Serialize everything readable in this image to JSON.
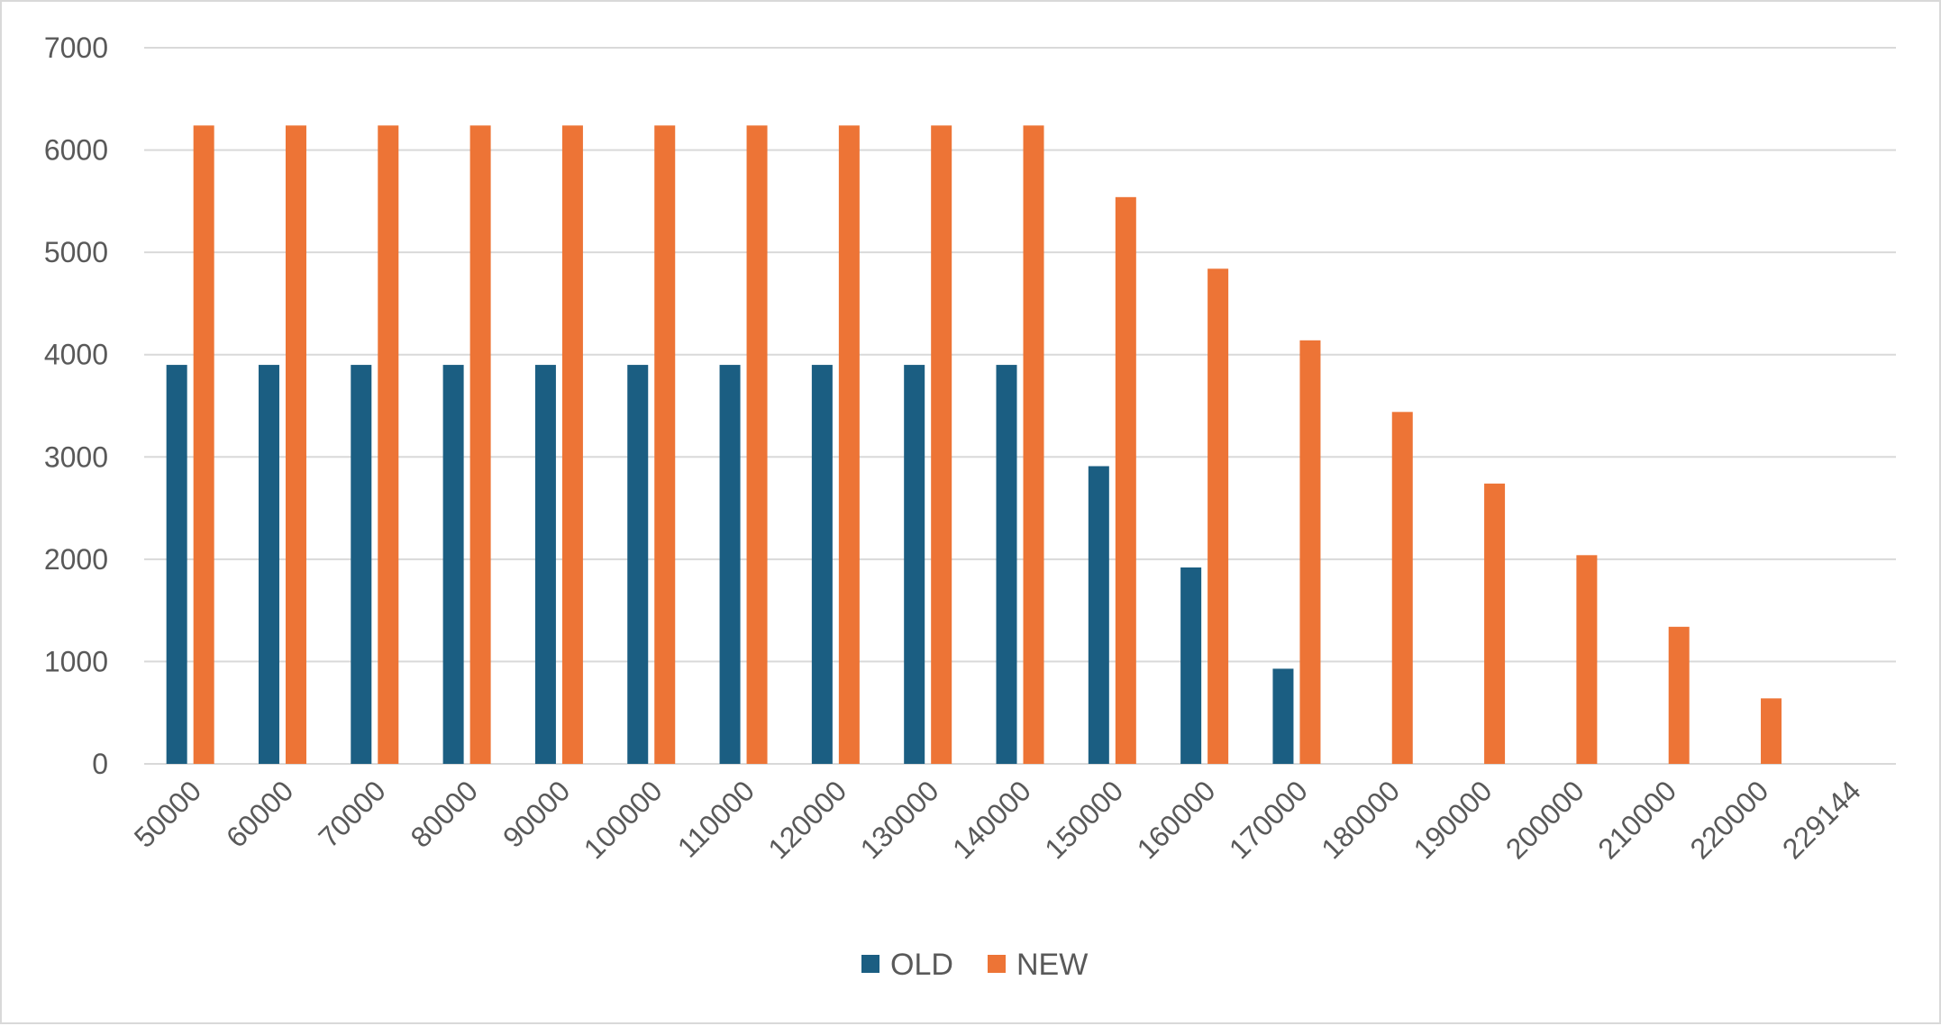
{
  "chart_data": {
    "type": "bar",
    "categories": [
      "50000",
      "60000",
      "70000",
      "80000",
      "90000",
      "100000",
      "110000",
      "120000",
      "130000",
      "140000",
      "150000",
      "160000",
      "170000",
      "180000",
      "190000",
      "200000",
      "210000",
      "220000",
      "229144"
    ],
    "series": [
      {
        "name": "OLD",
        "color": "#1b5e82",
        "values": [
          3900,
          3900,
          3900,
          3900,
          3900,
          3900,
          3900,
          3900,
          3900,
          3900,
          2910,
          1920,
          930,
          0,
          0,
          0,
          0,
          0,
          0
        ]
      },
      {
        "name": "NEW",
        "color": "#ed7436",
        "values": [
          6240,
          6240,
          6240,
          6240,
          6240,
          6240,
          6240,
          6240,
          6240,
          6240,
          5540,
          4840,
          4140,
          3440,
          2740,
          2040,
          1340,
          640,
          0
        ]
      }
    ],
    "title": "",
    "xlabel": "",
    "ylabel": "",
    "ylim": [
      0,
      7000
    ],
    "yticks": [
      0,
      1000,
      2000,
      3000,
      4000,
      5000,
      6000,
      7000
    ],
    "grid": true,
    "legend": "bottom-center"
  }
}
